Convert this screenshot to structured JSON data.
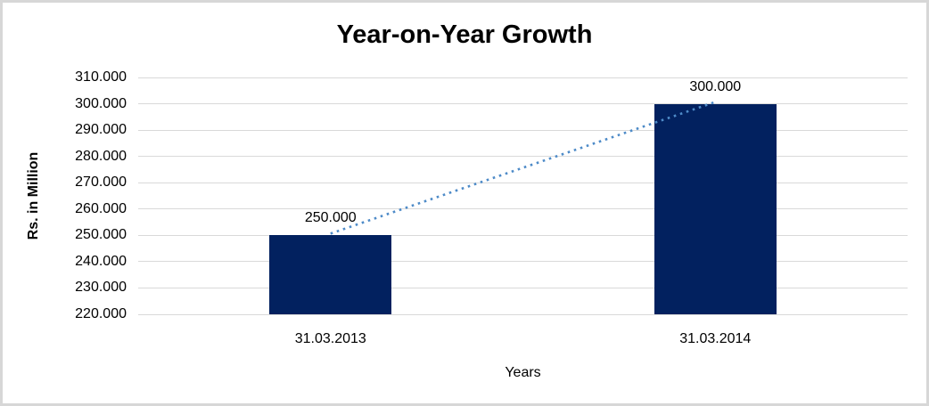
{
  "chart_data": {
    "type": "bar",
    "title": "Year-on-Year Growth",
    "xlabel": "Years",
    "ylabel": "Rs. in Million",
    "categories": [
      "31.03.2013",
      "31.03.2014"
    ],
    "series": [
      {
        "name": "Rs. in Million",
        "values": [
          250,
          300
        ]
      }
    ],
    "data_labels": [
      "250.000",
      "300.000"
    ],
    "ylim": [
      220,
      310
    ],
    "yticks": [
      {
        "value": 310,
        "label": "310.000"
      },
      {
        "value": 300,
        "label": "300.000"
      },
      {
        "value": 290,
        "label": "290.000"
      },
      {
        "value": 280,
        "label": "280.000"
      },
      {
        "value": 270,
        "label": "270.000"
      },
      {
        "value": 260,
        "label": "260.000"
      },
      {
        "value": 250,
        "label": "250.000"
      },
      {
        "value": 240,
        "label": "240.000"
      },
      {
        "value": 230,
        "label": "230.000"
      },
      {
        "value": 220,
        "label": "220.000"
      }
    ],
    "grid": "horizontal",
    "legend_position": "none",
    "trendline": {
      "style": "dotted",
      "connects_values": [
        250,
        300
      ]
    },
    "colors": {
      "bar": "#02215f",
      "trendline": "#4e8bc8",
      "gridline": "#d9d9d9",
      "text": "#000000",
      "background": "#ffffff",
      "frame_border": "#d7d7d7"
    }
  }
}
